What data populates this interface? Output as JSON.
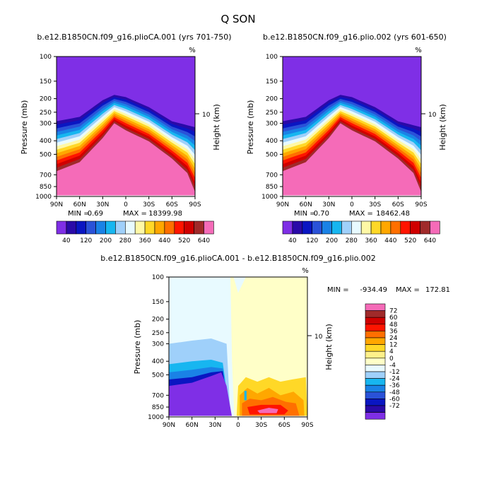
{
  "title": "Q SON",
  "unit_label": "%",
  "y_axis_label": "Pressure (mb)",
  "right_axis_label": "Height (km)",
  "right_axis_tick": "10",
  "pressure_ticks": [
    "100",
    "150",
    "200",
    "250",
    "300",
    "400",
    "500",
    "700",
    "850",
    "1000"
  ],
  "lat_ticks": [
    "90N",
    "60N",
    "30N",
    "0",
    "30S",
    "60S",
    "90S"
  ],
  "colors": {
    "abs": [
      "#7f2fe6",
      "#2a0aa8",
      "#0a16c2",
      "#2a52d8",
      "#1a82e6",
      "#17b6f0",
      "#9fd0fa",
      "#e8faff",
      "#fff8a6",
      "#ffd827",
      "#ffa700",
      "#ff6f00",
      "#ff1400",
      "#d00000",
      "#a02a2a",
      "#f56bb8"
    ],
    "diff": [
      "#7f2fe6",
      "#2a0aa8",
      "#0a16c2",
      "#2a52d8",
      "#1a82e6",
      "#17b6f0",
      "#9fd0fa",
      "#e8faff",
      "#ffffc8",
      "#fff08a",
      "#ffd827",
      "#ffa700",
      "#ff6f00",
      "#ff1400",
      "#d00000",
      "#a02a2a",
      "#f56bb8"
    ]
  },
  "chart_data": [
    {
      "type": "heatmap",
      "subtitle": "b.e12.B1850CN.f09_g16.plioCA.001 (yrs 701-750)",
      "stats": {
        "min_label": "MIN =",
        "min_value": "0.69",
        "max_label": "MAX =",
        "max_value": "18399.98"
      },
      "colorbar_labels": [
        "40",
        "120",
        "200",
        "280",
        "360",
        "440",
        "520",
        "640"
      ],
      "tropopause_mb_by_lat": [
        [
          90,
          290
        ],
        [
          60,
          270
        ],
        [
          30,
          205
        ],
        [
          15,
          188
        ],
        [
          0,
          195
        ],
        [
          -30,
          230
        ],
        [
          -60,
          290
        ],
        [
          -90,
          320
        ]
      ],
      "high_values_top_mb_by_lat": [
        [
          90,
          700
        ],
        [
          60,
          600
        ],
        [
          30,
          400
        ],
        [
          15,
          310
        ],
        [
          0,
          350
        ],
        [
          -30,
          420
        ],
        [
          -60,
          560
        ],
        [
          -80,
          720
        ],
        [
          -90,
          1000
        ]
      ]
    },
    {
      "type": "heatmap",
      "subtitle": "b.e12.B1850CN.f09_g16.plio.002 (yrs 601-650)",
      "stats": {
        "min_label": "MIN =",
        "min_value": "0.70",
        "max_label": "MAX =",
        "max_value": "18462.48"
      },
      "colorbar_labels": [
        "40",
        "120",
        "200",
        "280",
        "360",
        "440",
        "520",
        "640"
      ],
      "tropopause_mb_by_lat": [
        [
          90,
          290
        ],
        [
          60,
          270
        ],
        [
          30,
          205
        ],
        [
          15,
          188
        ],
        [
          0,
          195
        ],
        [
          -30,
          230
        ],
        [
          -60,
          290
        ],
        [
          -90,
          320
        ]
      ],
      "high_values_top_mb_by_lat": [
        [
          90,
          700
        ],
        [
          60,
          600
        ],
        [
          30,
          400
        ],
        [
          15,
          310
        ],
        [
          0,
          350
        ],
        [
          -30,
          420
        ],
        [
          -60,
          560
        ],
        [
          -80,
          720
        ],
        [
          -90,
          1000
        ]
      ]
    },
    {
      "type": "heatmap",
      "subtitle": "b.e12.B1850CN.f09_g16.plioCA.001 - b.e12.B1850CN.f09_g16.plio.002",
      "stats": {
        "min_label": "MIN =",
        "min_value": "-934.49",
        "max_label": "MAX =",
        "max_value": "172.81"
      },
      "colorbar_labels": [
        "72",
        "60",
        "48",
        "36",
        "24",
        "12",
        "4",
        "0",
        "-4",
        "-12",
        "-24",
        "-36",
        "-48",
        "-60",
        "-72"
      ],
      "regions": [
        "negative anomalies (blue/purple) north of the equator",
        "positive anomalies (yellow/orange/red) south of the equator"
      ]
    }
  ]
}
